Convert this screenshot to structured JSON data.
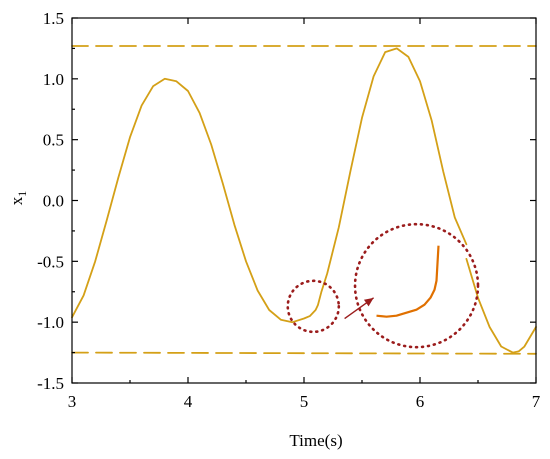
{
  "chart_data": {
    "type": "line",
    "xlabel": "Time(s)",
    "ylabel": "x",
    "ylabel_subscript": "1",
    "xlim": [
      3,
      7
    ],
    "ylim": [
      -1.5,
      1.5
    ],
    "x_ticks": [
      "3",
      "4",
      "5",
      "6",
      "7"
    ],
    "y_ticks": [
      "1.5",
      "1.0",
      "0.5",
      "0.0",
      "-0.5",
      "-1.0",
      "-1.5"
    ],
    "grid": false,
    "colors": {
      "series": "#d4a017",
      "bounds": "#d4a017",
      "annotation": "#9b1c1c",
      "zoom_detail": "#e07000"
    },
    "series": [
      {
        "style": "solid",
        "x": [
          3.0,
          3.1,
          3.2,
          3.3,
          3.4,
          3.5,
          3.6,
          3.7,
          3.8,
          3.9,
          4.0,
          4.1,
          4.2,
          4.3,
          4.4,
          4.5,
          4.6,
          4.7,
          4.8,
          4.9,
          5.0,
          5.05,
          5.1,
          5.12,
          5.15,
          5.2,
          5.3,
          5.4,
          5.5,
          5.6,
          5.7,
          5.8,
          5.9,
          6.0,
          6.1,
          6.2,
          6.3,
          6.4
        ],
        "y": [
          -0.96,
          -0.78,
          -0.5,
          -0.16,
          0.19,
          0.52,
          0.78,
          0.94,
          1.0,
          0.98,
          0.9,
          0.72,
          0.46,
          0.14,
          -0.2,
          -0.5,
          -0.74,
          -0.9,
          -0.98,
          -1.0,
          -0.97,
          -0.95,
          -0.9,
          -0.86,
          -0.75,
          -0.6,
          -0.22,
          0.24,
          0.68,
          1.02,
          1.22,
          1.25,
          1.18,
          0.98,
          0.66,
          0.24,
          -0.14,
          -0.36
        ]
      },
      {
        "style": "solid",
        "x": [
          6.4,
          6.5,
          6.6,
          6.7,
          6.8,
          6.85,
          6.9,
          7.0
        ],
        "y": [
          -0.48,
          -0.8,
          -1.04,
          -1.2,
          -1.25,
          -1.24,
          -1.2,
          -1.04
        ]
      },
      {
        "style": "dashed",
        "x": [
          3.0,
          7.0
        ],
        "y": [
          1.27,
          1.27
        ]
      },
      {
        "style": "dashed",
        "x": [
          3.0,
          7.0
        ],
        "y": [
          -1.25,
          -1.26
        ]
      }
    ],
    "annotations": [
      {
        "type": "circle",
        "cx": 5.08,
        "cy": -0.87,
        "r_x": 0.22,
        "style": "dotted"
      },
      {
        "type": "arrow",
        "from": [
          5.35,
          -0.97
        ],
        "to": [
          5.6,
          -0.8
        ]
      },
      {
        "type": "zoom-circle",
        "cx": 5.97,
        "cy": -0.7,
        "r_x": 0.53,
        "style": "dotted"
      }
    ]
  }
}
